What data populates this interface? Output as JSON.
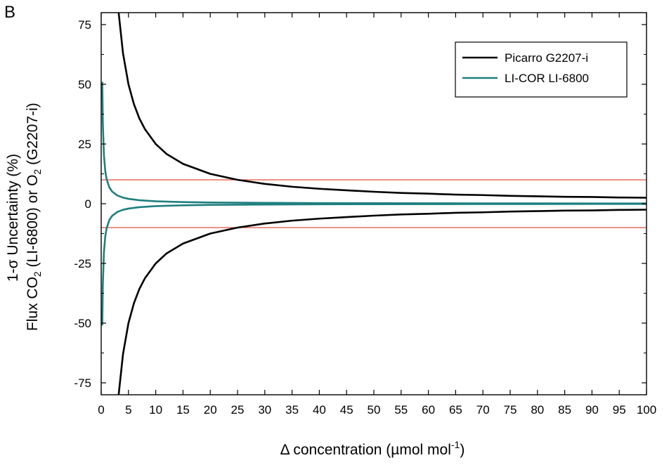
{
  "panel_label": "B",
  "chart_data": {
    "type": "line",
    "xlabel": {
      "pre": "Δ concentration (µmol mol",
      "sup": "-1",
      "post": ")"
    },
    "ylabel_line1": "1-σ Uncertainty (%)",
    "ylabel_line2": {
      "a": "Flux CO",
      "sub1": "2",
      "b": " (LI-6800) or O",
      "sub2": "2",
      "c": " (G2207-i)"
    },
    "xlim": [
      0,
      100
    ],
    "ylim": [
      -80,
      80
    ],
    "xticks": [
      0,
      5,
      10,
      15,
      20,
      25,
      30,
      35,
      40,
      45,
      50,
      55,
      60,
      65,
      70,
      75,
      80,
      85,
      90,
      95,
      100
    ],
    "yticks": [
      75,
      50,
      25,
      0,
      -25,
      -50,
      -75
    ],
    "grid": false,
    "legend_position": "top-right",
    "reference_lines": [
      {
        "y": 10,
        "color": "#e0503c"
      },
      {
        "y": -10,
        "color": "#e0503c"
      }
    ],
    "series": [
      {
        "name": "Picarro G2207-i",
        "color": "#000000",
        "mirrored": true,
        "x": [
          3.2,
          4,
          5,
          6,
          7,
          8,
          10,
          12,
          15,
          20,
          25,
          30,
          35,
          40,
          45,
          50,
          55,
          60,
          65,
          70,
          75,
          80,
          85,
          90,
          95,
          100
        ],
        "values": [
          80,
          63,
          50,
          41.7,
          35.7,
          31.3,
          25,
          20.8,
          16.7,
          12.5,
          10,
          8.3,
          7.1,
          6.25,
          5.6,
          5,
          4.5,
          4.2,
          3.8,
          3.6,
          3.3,
          3.1,
          2.9,
          2.8,
          2.6,
          2.5
        ]
      },
      {
        "name": "LI-COR LI-6800",
        "color": "#1f7f7f",
        "mirrored": true,
        "x": [
          0.2,
          0.3,
          0.5,
          0.75,
          1,
          1.5,
          2,
          3,
          4,
          5,
          7,
          10,
          15,
          20,
          30,
          40,
          50,
          60,
          70,
          80,
          90,
          100
        ],
        "values": [
          51,
          34,
          20.4,
          13.6,
          10.2,
          6.8,
          5.1,
          3.4,
          2.55,
          2.04,
          1.46,
          1.02,
          0.68,
          0.51,
          0.34,
          0.26,
          0.2,
          0.17,
          0.15,
          0.13,
          0.11,
          0.1
        ]
      }
    ]
  }
}
